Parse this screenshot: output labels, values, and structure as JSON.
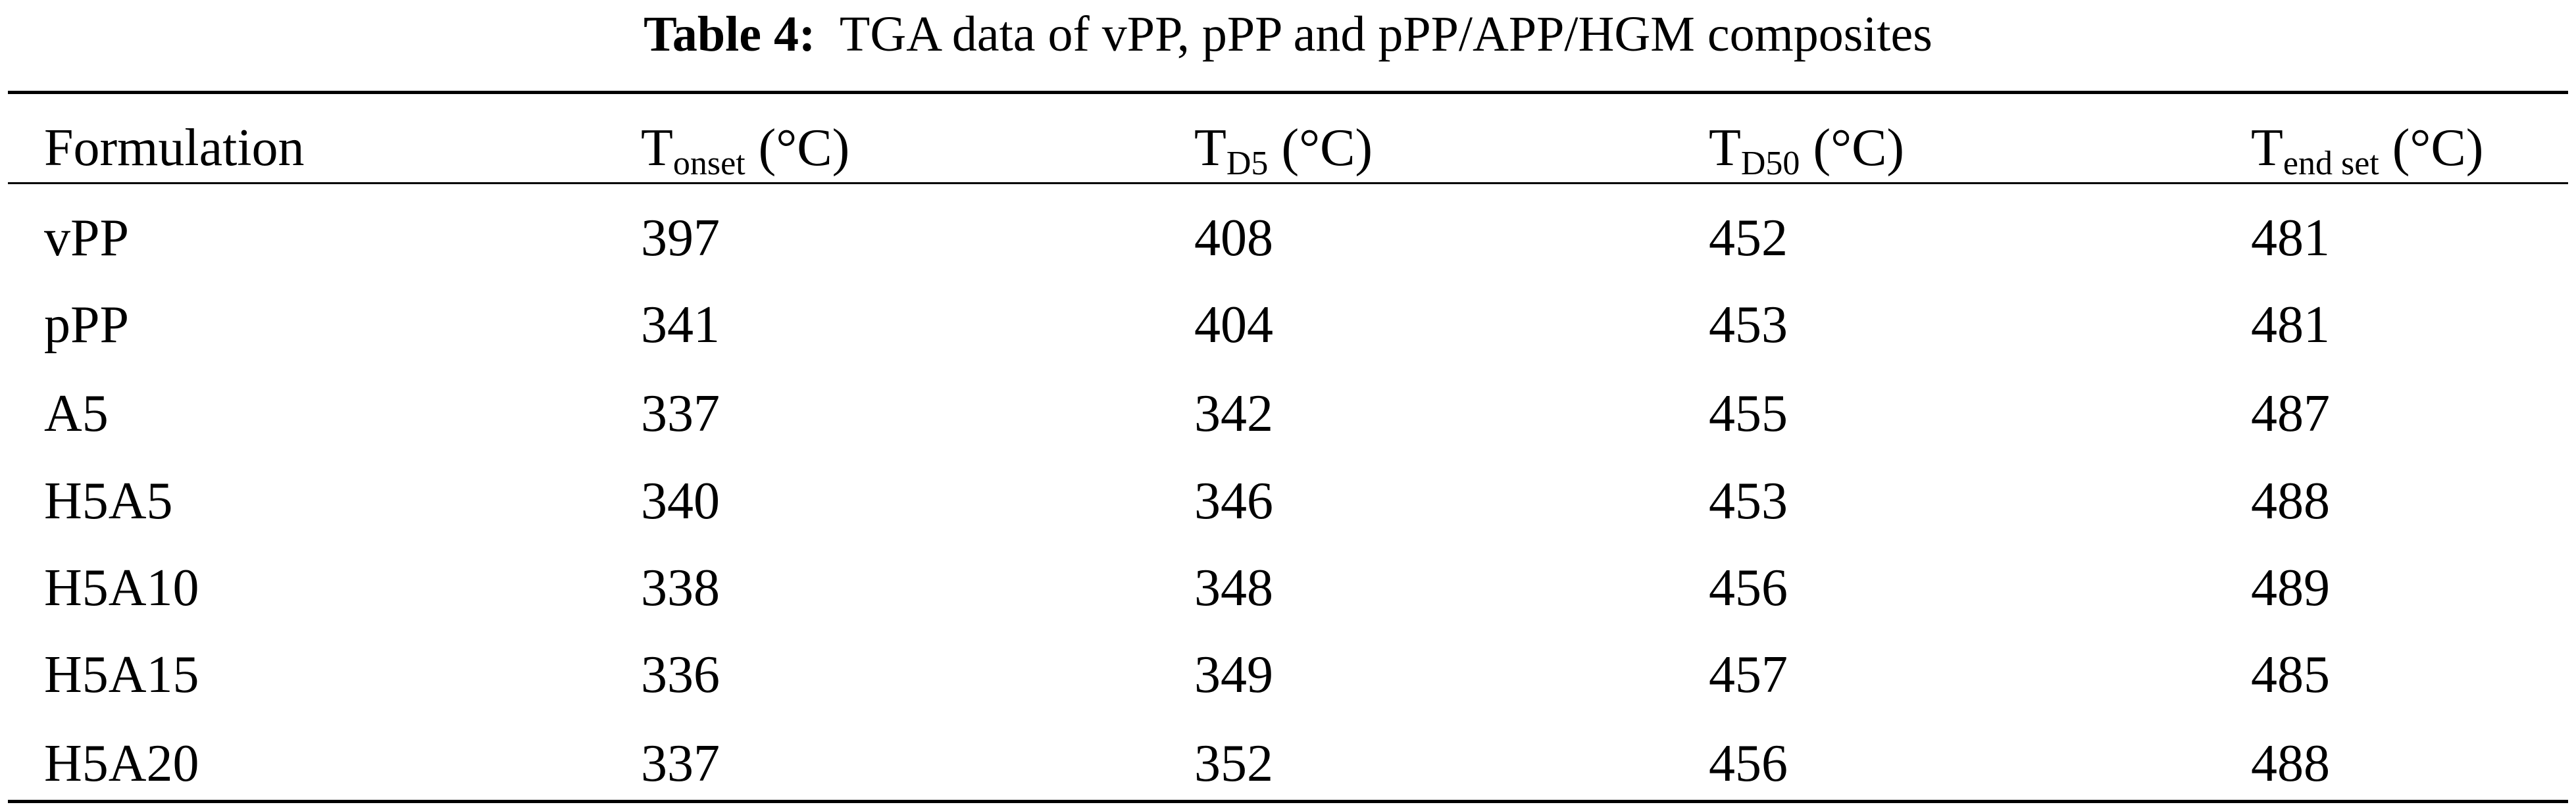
{
  "title": {
    "label": "Table 4:",
    "text": "TGA data of vPP, pPP and pPP/APP/HGM composites"
  },
  "table": {
    "header": [
      {
        "main": "Formulation"
      },
      {
        "main": "T",
        "sub": "onset",
        "unit": " (°C)"
      },
      {
        "main": "T",
        "sub": "D5",
        "unit": " (°C)"
      },
      {
        "main": "T",
        "sub": "D50",
        "unit": " (°C)"
      },
      {
        "main": "T",
        "sub": "end set",
        "unit": " (°C)"
      }
    ],
    "rows": [
      [
        "vPP",
        397,
        408,
        452,
        481
      ],
      [
        "pPP",
        341,
        404,
        453,
        481
      ],
      [
        "A5",
        337,
        342,
        455,
        487
      ],
      [
        "H5A5",
        340,
        346,
        453,
        488
      ],
      [
        "H5A10",
        338,
        348,
        456,
        489
      ],
      [
        "H5A15",
        336,
        349,
        457,
        485
      ],
      [
        "H5A20",
        337,
        352,
        456,
        488
      ]
    ]
  }
}
